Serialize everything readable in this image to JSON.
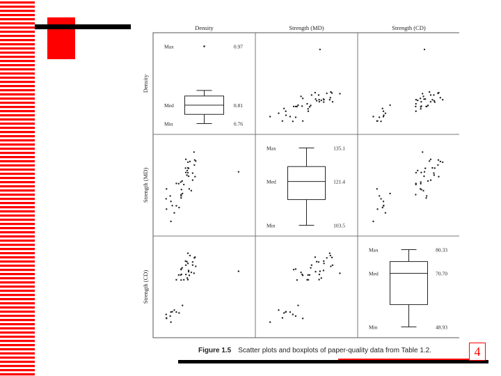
{
  "slide": {
    "page_number": "4",
    "caption_label": "Figure 1.5",
    "caption_text": "Scatter plots and boxplots of paper-quality data from Table 1.2.",
    "accent_color": "#ff0000"
  },
  "chart_data": {
    "type": "scatter",
    "variables": [
      "Density",
      "Strength (MD)",
      "Strength (CD)"
    ],
    "axis_labels": [
      "Density",
      "Strength (MD)",
      "Strength (CD)"
    ],
    "ranges": [
      [
        0.74,
        1.0
      ],
      [
        100,
        140
      ],
      [
        45,
        85
      ]
    ],
    "boxplots": [
      {
        "variable": "Density",
        "max": 0.97,
        "median": 0.81,
        "min": 0.76,
        "q1": 0.785,
        "q3": 0.835,
        "whisker_high": 0.85,
        "labels": {
          "max": "Max",
          "med": "Med",
          "min": "Min"
        },
        "max_text": "0.97",
        "med_text": "0.81",
        "min_text": "0.76"
      },
      {
        "variable": "Strength (MD)",
        "max": 135.1,
        "median": 121.4,
        "min": 103.5,
        "q1": 114.0,
        "q3": 127.5,
        "labels": {
          "max": "Max",
          "med": "Med",
          "min": "Min"
        },
        "max_text": "135.1",
        "med_text": "121.4",
        "min_text": "103.5"
      },
      {
        "variable": "Strength (CD)",
        "max": 80.33,
        "median": 70.7,
        "min": 48.93,
        "q1": 58.0,
        "q3": 75.5,
        "labels": {
          "max": "Max",
          "med": "Med",
          "min": "Min"
        },
        "max_text": "80.33",
        "med_text": "70.70",
        "min_text": "48.93"
      }
    ],
    "points": [
      [
        0.801,
        121.41,
        70.42
      ],
      [
        0.824,
        127.7,
        72.47
      ],
      [
        0.841,
        129.2,
        78.2
      ],
      [
        0.816,
        131.8,
        74.89
      ],
      [
        0.84,
        135.1,
        71.21
      ],
      [
        0.842,
        131.5,
        78.39
      ],
      [
        0.82,
        126.7,
        69.02
      ],
      [
        0.802,
        115.1,
        73.1
      ],
      [
        0.828,
        130.8,
        79.28
      ],
      [
        0.819,
        124.6,
        76.48
      ],
      [
        0.826,
        118.31,
        70.25
      ],
      [
        0.802,
        114.2,
        72.88
      ],
      [
        0.81,
        120.3,
        68.23
      ],
      [
        0.802,
        115.7,
        68.12
      ],
      [
        0.832,
        117.51,
        71.62
      ],
      [
        0.796,
        109.81,
        53.1
      ],
      [
        0.759,
        109.1,
        50.85
      ],
      [
        0.77,
        115.1,
        51.68
      ],
      [
        0.759,
        118.31,
        50.6
      ],
      [
        0.772,
        112.6,
        53.51
      ],
      [
        0.806,
        116.2,
        56.53
      ],
      [
        0.803,
        118.0,
        70.7
      ],
      [
        0.845,
        131.0,
        74.35
      ],
      [
        0.822,
        125.7,
        68.29
      ],
      [
        0.971,
        126.1,
        72.1
      ],
      [
        0.816,
        125.8,
        70.64
      ],
      [
        0.836,
        125.5,
        76.33
      ],
      [
        0.815,
        127.8,
        76.75
      ],
      [
        0.822,
        130.5,
        80.33
      ],
      [
        0.822,
        127.9,
        75.68
      ],
      [
        0.843,
        123.9,
        78.54
      ],
      [
        0.824,
        124.1,
        71.91
      ],
      [
        0.788,
        120.8,
        68.22
      ],
      [
        0.782,
        107.4,
        54.42
      ],
      [
        0.795,
        120.7,
        70.41
      ],
      [
        0.805,
        121.91,
        73.68
      ],
      [
        0.836,
        122.31,
        74.93
      ],
      [
        0.788,
        110.6,
        53.52
      ],
      [
        0.772,
        103.51,
        48.93
      ],
      [
        0.776,
        110.71,
        53.67
      ],
      [
        0.758,
        113.8,
        52.42
      ]
    ]
  }
}
